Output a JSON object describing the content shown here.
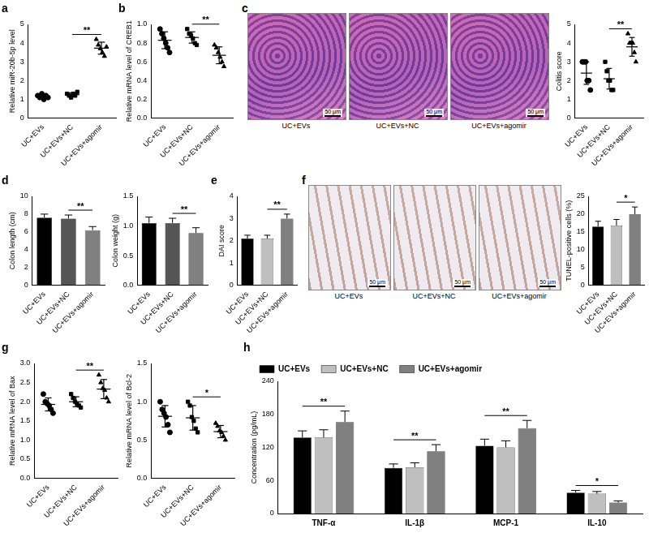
{
  "chart_data": [
    {
      "panel_label": "a",
      "type": "strip",
      "color": "#000000",
      "grid": false,
      "y_label": "Relative miR-20b-5p level",
      "ylim": [
        0,
        5
      ],
      "yticks": [
        0,
        1,
        2,
        3,
        4,
        5
      ],
      "series": [
        {
          "name": "UC+EVs",
          "marker": "circle",
          "values": [
            1.2,
            1.1,
            1.3,
            1.0,
            1.2,
            1.1
          ],
          "mean": 1.15,
          "sd": 0.1
        },
        {
          "name": "UC+EVs+NC",
          "marker": "square",
          "values": [
            1.3,
            1.2,
            1.1,
            1.3,
            1.2,
            1.4
          ],
          "mean": 1.25,
          "sd": 0.1
        },
        {
          "name": "UC+EVs+agomir",
          "marker": "triangle",
          "values": [
            4.2,
            3.9,
            3.7,
            3.5,
            3.3,
            3.8
          ],
          "mean": 3.73,
          "sd": 0.32
        }
      ],
      "annotations": [
        {
          "text": "**",
          "between": [
            "UC+EVs+NC",
            "UC+EVs+agomir"
          ]
        }
      ]
    },
    {
      "panel_label": "b",
      "type": "strip",
      "color": "#000000",
      "grid": false,
      "y_label": "Relative mRNA level of CREB1",
      "ylim": [
        0,
        1
      ],
      "yticks": [
        {
          "value": 0,
          "label": "0.0"
        },
        0.2,
        0.4,
        0.6,
        0.8,
        {
          "value": 1,
          "label": "1.0"
        }
      ],
      "series": [
        {
          "name": "UC+EVs",
          "marker": "circle",
          "values": [
            0.95,
            0.9,
            0.85,
            0.8,
            0.75,
            0.7
          ],
          "mean": 0.83,
          "sd": 0.09
        },
        {
          "name": "UC+EVs+NC",
          "marker": "square",
          "values": [
            0.95,
            0.9,
            0.88,
            0.85,
            0.8,
            0.78
          ],
          "mean": 0.86,
          "sd": 0.06
        },
        {
          "name": "UC+EVs+agomir",
          "marker": "triangle",
          "values": [
            0.78,
            0.75,
            0.7,
            0.65,
            0.6,
            0.55
          ],
          "mean": 0.67,
          "sd": 0.09
        }
      ],
      "annotations": [
        {
          "text": "**",
          "between": [
            "UC+EVs+NC",
            "UC+EVs+agomir"
          ]
        }
      ]
    },
    {
      "type": "strip",
      "color": "#000000",
      "grid": false,
      "y_label": "Colitis score",
      "ylim": [
        0,
        5
      ],
      "yticks": [
        0,
        1,
        2,
        3,
        4,
        5
      ],
      "series": [
        {
          "name": "UC+EVs",
          "marker": "circle",
          "values": [
            3,
            3,
            3,
            2,
            2,
            1.5
          ],
          "mean": 2.4,
          "sd": 0.6
        },
        {
          "name": "UC+EVs+NC",
          "marker": "square",
          "values": [
            3,
            2.5,
            2,
            2,
            1.5,
            1.5
          ],
          "mean": 2.1,
          "sd": 0.55
        },
        {
          "name": "UC+EVs+agomir",
          "marker": "triangle",
          "values": [
            4.5,
            4,
            4,
            4,
            3.5,
            3
          ],
          "mean": 3.8,
          "sd": 0.5
        }
      ],
      "annotations": [
        {
          "text": "**",
          "between": [
            "UC+EVs+NC",
            "UC+EVs+agomir"
          ]
        }
      ]
    },
    {
      "panel_label": "d",
      "type": "bar",
      "grid": false,
      "y_label": "Colon length (cm)",
      "ylim": [
        0,
        10
      ],
      "yticks": [
        0,
        2,
        4,
        6,
        8,
        10
      ],
      "categories": [
        "UC+EVs",
        "UC+EVs+NC",
        "UC+EVs+agomir"
      ],
      "values": [
        7.6,
        7.5,
        6.2
      ],
      "errors": [
        0.4,
        0.4,
        0.4
      ],
      "colors": [
        "#000000",
        "#555555",
        "#808080"
      ],
      "annotations": [
        {
          "text": "**",
          "between": [
            "UC+EVs+NC",
            "UC+EVs+agomir"
          ]
        }
      ]
    },
    {
      "type": "bar",
      "grid": false,
      "y_label": "Colon weight (g)",
      "ylim": [
        0,
        1.5
      ],
      "yticks": [
        {
          "value": 0,
          "label": "0.0"
        },
        0.5,
        {
          "value": 1,
          "label": "1.0"
        },
        1.5
      ],
      "categories": [
        "UC+EVs",
        "UC+EVs+NC",
        "UC+EVs+agomir"
      ],
      "values": [
        1.05,
        1.05,
        0.88
      ],
      "errors": [
        0.1,
        0.08,
        0.09
      ],
      "colors": [
        "#000000",
        "#555555",
        "#808080"
      ],
      "annotations": [
        {
          "text": "**",
          "between": [
            "UC+EVs+NC",
            "UC+EVs+agomir"
          ]
        }
      ]
    },
    {
      "panel_label": "e",
      "type": "bar",
      "grid": false,
      "y_label": "DAI score",
      "ylim": [
        0,
        4
      ],
      "yticks": [
        0,
        1,
        2,
        3,
        4
      ],
      "categories": [
        "UC+EVs",
        "UC+EVs+NC",
        "UC+EVs+agomir"
      ],
      "values": [
        2.1,
        2.1,
        3.0
      ],
      "errors": [
        0.15,
        0.15,
        0.2
      ],
      "colors": [
        "#000000",
        "#bfbfbf",
        "#808080"
      ],
      "annotations": [
        {
          "text": "**",
          "between": [
            "UC+EVs+NC",
            "UC+EVs+agomir"
          ]
        }
      ]
    },
    {
      "type": "bar",
      "grid": false,
      "y_label": "TUNEL-positive cells (%)",
      "ylim": [
        0,
        25
      ],
      "yticks": [
        0,
        5,
        10,
        15,
        20,
        25
      ],
      "categories": [
        "UC+EVs",
        "UC+EVs+NC",
        "UC+EVs+agomir"
      ],
      "values": [
        16.5,
        16.8,
        20
      ],
      "errors": [
        1.5,
        1.7,
        2
      ],
      "colors": [
        "#000000",
        "#bfbfbf",
        "#808080"
      ],
      "annotations": [
        {
          "text": "*",
          "between": [
            "UC+EVs+NC",
            "UC+EVs+agomir"
          ]
        }
      ]
    },
    {
      "panel_label": "g",
      "type": "strip",
      "color": "#000000",
      "grid": false,
      "y_label": "Relative mRNA level of Bax",
      "ylim": [
        0,
        3
      ],
      "yticks": [
        {
          "value": 0,
          "label": "0.0"
        },
        0.5,
        {
          "value": 1,
          "label": "1.0"
        },
        1.5,
        {
          "value": 2,
          "label": "2.0"
        },
        2.5,
        {
          "value": 3,
          "label": "3.0"
        }
      ],
      "series": [
        {
          "name": "UC+EVs",
          "marker": "circle",
          "values": [
            2.2,
            2.0,
            1.95,
            1.9,
            1.8,
            1.7
          ],
          "mean": 1.93,
          "sd": 0.17
        },
        {
          "name": "UC+EVs+NC",
          "marker": "square",
          "values": [
            2.2,
            2.1,
            2.0,
            1.95,
            1.9,
            1.85
          ],
          "mean": 2.0,
          "sd": 0.13
        },
        {
          "name": "UC+EVs+agomir",
          "marker": "triangle",
          "values": [
            2.7,
            2.5,
            2.35,
            2.3,
            2.1,
            2.0
          ],
          "mean": 2.33,
          "sd": 0.25
        }
      ],
      "annotations": [
        {
          "text": "**",
          "between": [
            "UC+EVs+NC",
            "UC+EVs+agomir"
          ]
        }
      ]
    },
    {
      "type": "strip",
      "color": "#000000",
      "grid": false,
      "y_label": "Relative mRNA level of Bcl-2",
      "ylim": [
        0,
        1.5
      ],
      "yticks": [
        {
          "value": 0,
          "label": "0.0"
        },
        0.5,
        {
          "value": 1,
          "label": "1.0"
        },
        1.5
      ],
      "series": [
        {
          "name": "UC+EVs",
          "marker": "circle",
          "values": [
            1.0,
            0.9,
            0.85,
            0.8,
            0.7,
            0.6
          ],
          "mean": 0.81,
          "sd": 0.14
        },
        {
          "name": "UC+EVs+NC",
          "marker": "square",
          "values": [
            1.0,
            0.95,
            0.8,
            0.75,
            0.65,
            0.6
          ],
          "mean": 0.79,
          "sd": 0.16
        },
        {
          "name": "UC+EVs+agomir",
          "marker": "triangle",
          "values": [
            0.72,
            0.68,
            0.62,
            0.6,
            0.55,
            0.5
          ],
          "mean": 0.61,
          "sd": 0.08
        }
      ],
      "annotations": [
        {
          "text": "*",
          "between": [
            "UC+EVs+NC",
            "UC+EVs+agomir"
          ]
        }
      ]
    },
    {
      "panel_label": "h",
      "type": "bar",
      "grid": false,
      "legend": "top",
      "y_label": "Concentration (pg/mL)",
      "ylim": [
        0,
        240
      ],
      "yticks": [
        0,
        60,
        120,
        180,
        240
      ],
      "categories": [
        "TNF-α",
        "IL-1β",
        "MCP-1",
        "IL-10"
      ],
      "series": [
        {
          "name": "UC+EVs",
          "color": "#000000",
          "values": [
            138,
            83,
            123,
            38
          ],
          "errors": [
            12,
            7,
            12,
            4
          ]
        },
        {
          "name": "UC+EVs+NC",
          "color": "#bfbfbf",
          "values": [
            138,
            84,
            120,
            36
          ],
          "errors": [
            14,
            8,
            12,
            4
          ]
        },
        {
          "name": "UC+EVs+agomir",
          "color": "#808080",
          "values": [
            166,
            113,
            155,
            20
          ],
          "errors": [
            20,
            12,
            14,
            3
          ]
        }
      ],
      "annotations": [
        {
          "text": "**",
          "category": "TNF-α",
          "between": [
            "UC+EVs",
            "UC+EVs+agomir"
          ]
        },
        {
          "text": "**",
          "category": "IL-1β",
          "between": [
            "UC+EVs",
            "UC+EVs+agomir"
          ]
        },
        {
          "text": "**",
          "category": "MCP-1",
          "between": [
            "UC+EVs",
            "UC+EVs+agomir"
          ]
        },
        {
          "text": "*",
          "category": "IL-10",
          "between": [
            "UC+EVs",
            "UC+EVs+agomir"
          ]
        }
      ]
    }
  ],
  "images": [
    {
      "panel_label": "c",
      "captions": [
        "UC+EVs",
        "UC+EVs+NC",
        "UC+EVs+agomir"
      ],
      "scale_bar": "50 μm"
    },
    {
      "panel_label": "f",
      "captions": [
        "UC+EVs",
        "UC+EVs+NC",
        "UC+EVs+agomir"
      ],
      "scale_bar": "50 μm"
    }
  ]
}
